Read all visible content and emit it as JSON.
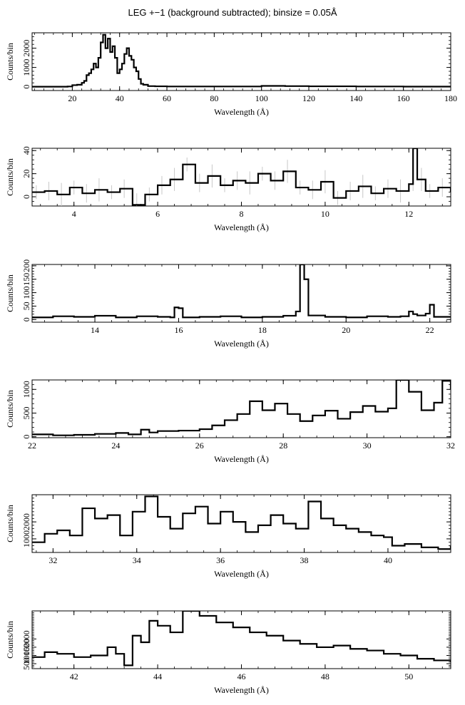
{
  "title": "LEG +−1 (background subtracted); binsize = 0.05Å",
  "colors": {
    "line": "#000000",
    "error_bars": "#c8c8c8",
    "background": "#ffffff"
  },
  "chart_data": [
    {
      "type": "line",
      "step": true,
      "xlabel": "Wavelength (Å)",
      "ylabel": "Counts/bin",
      "xlim": [
        3,
        180
      ],
      "ylim": [
        -200,
        2800
      ],
      "xticks": [
        20,
        40,
        60,
        80,
        100,
        120,
        140,
        160,
        180
      ],
      "yticks": [
        0,
        1000,
        2000
      ],
      "ytick_labels": [
        "0",
        "1000",
        "2000"
      ],
      "series": [
        {
          "x": [
            3,
            15,
            18,
            20,
            22,
            24,
            25,
            26,
            27,
            28,
            29,
            30,
            31,
            32,
            33,
            34,
            35,
            36,
            37,
            38,
            39,
            40,
            41,
            42,
            43,
            44,
            45,
            46,
            47,
            48,
            49,
            50,
            52,
            55,
            60,
            80,
            100,
            110,
            120,
            140,
            160,
            180
          ],
          "y": [
            0,
            0,
            10,
            80,
            100,
            200,
            300,
            600,
            700,
            900,
            1200,
            1000,
            1500,
            2300,
            2700,
            2000,
            2500,
            1800,
            2100,
            1500,
            700,
            900,
            1200,
            1700,
            2000,
            1600,
            1400,
            1000,
            800,
            400,
            150,
            100,
            30,
            20,
            10,
            10,
            40,
            30,
            20,
            10,
            5,
            5
          ]
        }
      ]
    },
    {
      "type": "line",
      "step": true,
      "error_bars": true,
      "xlabel": "Wavelength (Å)",
      "ylabel": "Counts/bin",
      "xlim": [
        3,
        13
      ],
      "ylim": [
        -8,
        42
      ],
      "xticks": [
        4,
        6,
        8,
        10,
        12
      ],
      "yticks": [
        0,
        20,
        40
      ],
      "ytick_labels": [
        "0",
        "20",
        "40"
      ],
      "series": [
        {
          "x": [
            3,
            3.3,
            3.6,
            3.9,
            4.2,
            4.5,
            4.8,
            5.1,
            5.4,
            5.7,
            6.0,
            6.3,
            6.6,
            6.9,
            7.2,
            7.5,
            7.8,
            8.1,
            8.4,
            8.7,
            9.0,
            9.3,
            9.6,
            9.9,
            10.2,
            10.5,
            10.8,
            11.1,
            11.4,
            11.7,
            12.0,
            12.1,
            12.2,
            12.4,
            12.7,
            13
          ],
          "y": [
            4,
            5,
            2,
            8,
            3,
            6,
            4,
            7,
            -7,
            2,
            10,
            15,
            28,
            12,
            18,
            10,
            14,
            12,
            20,
            14,
            22,
            8,
            6,
            13,
            -1,
            5,
            9,
            3,
            7,
            5,
            11,
            42,
            15,
            5,
            8,
            4
          ]
        }
      ]
    },
    {
      "type": "line",
      "step": true,
      "xlabel": "Wavelength (Å)",
      "ylabel": "Counts/bin",
      "xlim": [
        12.5,
        22.5
      ],
      "ylim": [
        -10,
        205
      ],
      "xticks": [
        14,
        16,
        18,
        20,
        22
      ],
      "yticks": [
        0,
        50,
        100,
        150,
        200
      ],
      "ytick_labels": [
        "0",
        "50",
        "100",
        "150",
        "200"
      ],
      "series": [
        {
          "x": [
            12.5,
            13,
            13.5,
            14,
            14.5,
            15,
            15.5,
            15.8,
            15.9,
            16.0,
            16.1,
            16.5,
            17,
            17.5,
            18,
            18.5,
            18.8,
            18.9,
            19.0,
            19.1,
            19.5,
            20,
            20.5,
            21,
            21.3,
            21.5,
            21.6,
            21.7,
            21.9,
            22.0,
            22.1,
            22.5
          ],
          "y": [
            8,
            12,
            10,
            14,
            8,
            12,
            10,
            8,
            45,
            42,
            8,
            10,
            12,
            8,
            10,
            14,
            30,
            205,
            150,
            15,
            10,
            8,
            12,
            10,
            12,
            30,
            20,
            15,
            22,
            55,
            10,
            12
          ]
        }
      ]
    },
    {
      "type": "line",
      "step": true,
      "xlabel": "Wavelength (Å)",
      "ylabel": "Counts/bin",
      "xlim": [
        22,
        32
      ],
      "ylim": [
        -20,
        1200
      ],
      "xticks": [
        22,
        24,
        26,
        28,
        30,
        32
      ],
      "yticks": [
        0,
        500,
        1000
      ],
      "ytick_labels": [
        "0",
        "500",
        "1000"
      ],
      "series": [
        {
          "x": [
            22,
            22.5,
            23,
            23.5,
            24,
            24.3,
            24.6,
            24.8,
            25,
            25.5,
            26,
            26.3,
            26.6,
            26.9,
            27.2,
            27.5,
            27.8,
            28.1,
            28.4,
            28.7,
            29,
            29.3,
            29.6,
            29.9,
            30.2,
            30.5,
            30.7,
            31,
            31.3,
            31.6,
            31.8,
            32
          ],
          "y": [
            50,
            30,
            40,
            60,
            80,
            50,
            150,
            90,
            120,
            130,
            160,
            240,
            350,
            480,
            750,
            560,
            700,
            480,
            330,
            450,
            550,
            380,
            520,
            650,
            530,
            600,
            1200,
            950,
            560,
            720,
            1180,
            1000
          ]
        }
      ]
    },
    {
      "type": "line",
      "step": true,
      "xlabel": "Wavelength (Å)",
      "ylabel": "Counts/bin",
      "xlim": [
        31.5,
        41.5
      ],
      "ylim": [
        200,
        3600
      ],
      "xticks": [
        32,
        34,
        36,
        38,
        40
      ],
      "yticks": [
        1000,
        2000
      ],
      "ytick_labels": [
        "1000",
        "2000"
      ],
      "series": [
        {
          "x": [
            31.5,
            31.8,
            32.1,
            32.4,
            32.7,
            33,
            33.3,
            33.6,
            33.9,
            34.2,
            34.5,
            34.8,
            35.1,
            35.4,
            35.7,
            36,
            36.3,
            36.6,
            36.9,
            37.2,
            37.5,
            37.8,
            38.1,
            38.4,
            38.7,
            39,
            39.3,
            39.6,
            39.9,
            40.1,
            40.4,
            40.8,
            41.2,
            41.5
          ],
          "y": [
            800,
            1300,
            1500,
            1200,
            2800,
            2200,
            2400,
            1200,
            2600,
            3500,
            2300,
            1600,
            2500,
            2900,
            1900,
            2600,
            2000,
            1400,
            1800,
            2400,
            1900,
            1600,
            3200,
            2200,
            1800,
            1600,
            1400,
            1200,
            1100,
            600,
            700,
            500,
            400,
            600
          ]
        }
      ]
    },
    {
      "type": "line",
      "step": true,
      "xlabel": "Wavelength (Å)",
      "ylabel": "Counts/bin",
      "xlim": [
        41,
        51
      ],
      "ylim": [
        200,
        3700
      ],
      "xticks": [
        42,
        44,
        46,
        48,
        50
      ],
      "yticks": [
        500,
        1000,
        1500,
        2000
      ],
      "ytick_labels": [
        "500",
        "1000",
        "1500",
        "2000"
      ],
      "series": [
        {
          "x": [
            41,
            41.3,
            41.6,
            42,
            42.4,
            42.8,
            43,
            43.2,
            43.4,
            43.6,
            43.8,
            44,
            44.3,
            44.6,
            45,
            45.4,
            45.8,
            46.2,
            46.6,
            47,
            47.4,
            47.8,
            48.2,
            48.6,
            49,
            49.4,
            49.8,
            50.2,
            50.6,
            51
          ],
          "y": [
            900,
            1200,
            1100,
            900,
            1000,
            1500,
            1100,
            400,
            2200,
            1800,
            3100,
            2800,
            2400,
            3700,
            3400,
            3000,
            2700,
            2400,
            2200,
            1900,
            1700,
            1500,
            1600,
            1400,
            1300,
            1100,
            1000,
            800,
            700,
            600
          ]
        }
      ]
    }
  ]
}
